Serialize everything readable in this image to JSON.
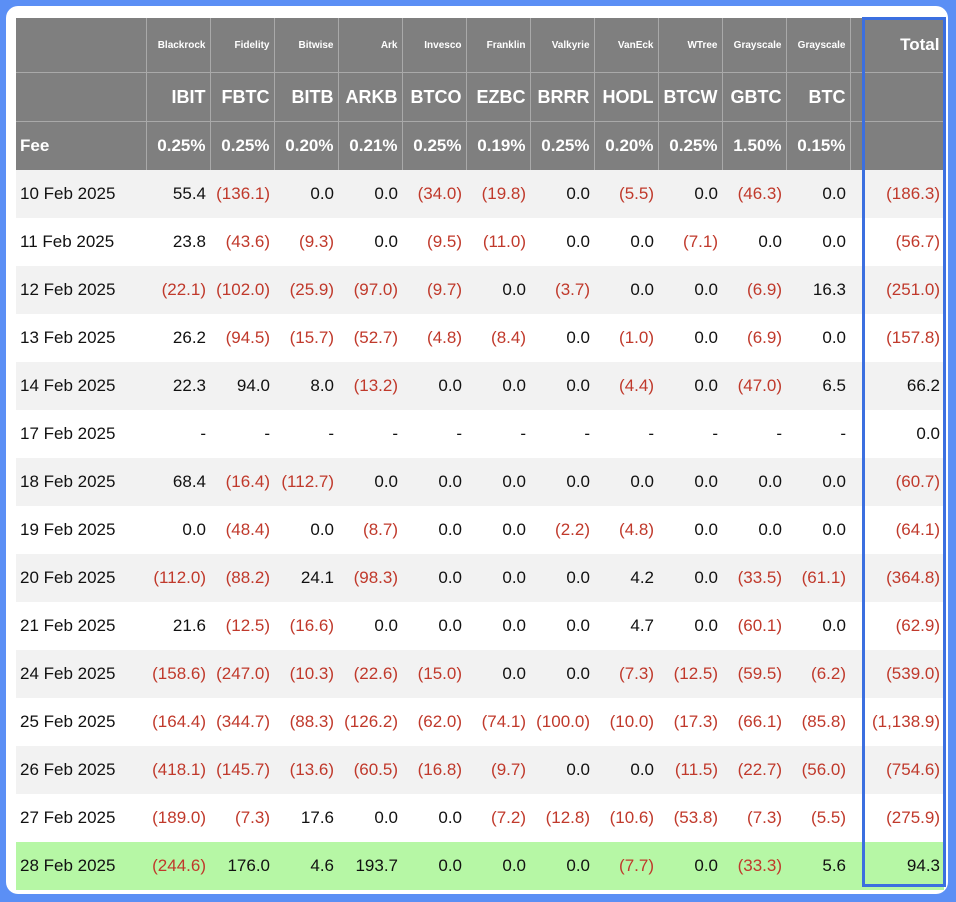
{
  "header": {
    "issuers": [
      "Blackrock",
      "Fidelity",
      "Bitwise",
      "Ark",
      "Invesco",
      "Franklin",
      "Valkyrie",
      "VanEck",
      "WTree",
      "Grayscale",
      "Grayscale"
    ],
    "total_label": "Total",
    "tickers": [
      "IBIT",
      "FBTC",
      "BITB",
      "ARKB",
      "BTCO",
      "EZBC",
      "BRRR",
      "HODL",
      "BTCW",
      "GBTC",
      "BTC"
    ],
    "fee_label": "Fee",
    "fees": [
      "0.25%",
      "0.25%",
      "0.20%",
      "0.21%",
      "0.25%",
      "0.19%",
      "0.25%",
      "0.20%",
      "0.25%",
      "1.50%",
      "0.15%"
    ]
  },
  "rows": [
    {
      "date": "10 Feb 2025",
      "values": [
        "55.4",
        "(136.1)",
        "0.0",
        "0.0",
        "(34.0)",
        "(19.8)",
        "0.0",
        "(5.5)",
        "0.0",
        "(46.3)",
        "0.0"
      ],
      "total": "(186.3)"
    },
    {
      "date": "11 Feb 2025",
      "values": [
        "23.8",
        "(43.6)",
        "(9.3)",
        "0.0",
        "(9.5)",
        "(11.0)",
        "0.0",
        "0.0",
        "(7.1)",
        "0.0",
        "0.0"
      ],
      "total": "(56.7)"
    },
    {
      "date": "12 Feb 2025",
      "values": [
        "(22.1)",
        "(102.0)",
        "(25.9)",
        "(97.0)",
        "(9.7)",
        "0.0",
        "(3.7)",
        "0.0",
        "0.0",
        "(6.9)",
        "16.3"
      ],
      "total": "(251.0)"
    },
    {
      "date": "13 Feb 2025",
      "values": [
        "26.2",
        "(94.5)",
        "(15.7)",
        "(52.7)",
        "(4.8)",
        "(8.4)",
        "0.0",
        "(1.0)",
        "0.0",
        "(6.9)",
        "0.0"
      ],
      "total": "(157.8)"
    },
    {
      "date": "14 Feb 2025",
      "values": [
        "22.3",
        "94.0",
        "8.0",
        "(13.2)",
        "0.0",
        "0.0",
        "0.0",
        "(4.4)",
        "0.0",
        "(47.0)",
        "6.5"
      ],
      "total": "66.2"
    },
    {
      "date": "17 Feb 2025",
      "values": [
        "-",
        "-",
        "-",
        "-",
        "-",
        "-",
        "-",
        "-",
        "-",
        "-",
        "-"
      ],
      "total": "0.0"
    },
    {
      "date": "18 Feb 2025",
      "values": [
        "68.4",
        "(16.4)",
        "(112.7)",
        "0.0",
        "0.0",
        "0.0",
        "0.0",
        "0.0",
        "0.0",
        "0.0",
        "0.0"
      ],
      "total": "(60.7)"
    },
    {
      "date": "19 Feb 2025",
      "values": [
        "0.0",
        "(48.4)",
        "0.0",
        "(8.7)",
        "0.0",
        "0.0",
        "(2.2)",
        "(4.8)",
        "0.0",
        "0.0",
        "0.0"
      ],
      "total": "(64.1)"
    },
    {
      "date": "20 Feb 2025",
      "values": [
        "(112.0)",
        "(88.2)",
        "24.1",
        "(98.3)",
        "0.0",
        "0.0",
        "0.0",
        "4.2",
        "0.0",
        "(33.5)",
        "(61.1)"
      ],
      "total": "(364.8)"
    },
    {
      "date": "21 Feb 2025",
      "values": [
        "21.6",
        "(12.5)",
        "(16.6)",
        "0.0",
        "0.0",
        "0.0",
        "0.0",
        "4.7",
        "0.0",
        "(60.1)",
        "0.0"
      ],
      "total": "(62.9)"
    },
    {
      "date": "24 Feb 2025",
      "values": [
        "(158.6)",
        "(247.0)",
        "(10.3)",
        "(22.6)",
        "(15.0)",
        "0.0",
        "0.0",
        "(7.3)",
        "(12.5)",
        "(59.5)",
        "(6.2)"
      ],
      "total": "(539.0)"
    },
    {
      "date": "25 Feb 2025",
      "values": [
        "(164.4)",
        "(344.7)",
        "(88.3)",
        "(126.2)",
        "(62.0)",
        "(74.1)",
        "(100.0)",
        "(10.0)",
        "(17.3)",
        "(66.1)",
        "(85.8)"
      ],
      "total": "(1,138.9)"
    },
    {
      "date": "26 Feb 2025",
      "values": [
        "(418.1)",
        "(145.7)",
        "(13.6)",
        "(60.5)",
        "(16.8)",
        "(9.7)",
        "0.0",
        "0.0",
        "(11.5)",
        "(22.7)",
        "(56.0)"
      ],
      "total": "(754.6)"
    },
    {
      "date": "27 Feb 2025",
      "values": [
        "(189.0)",
        "(7.3)",
        "17.6",
        "0.0",
        "0.0",
        "(7.2)",
        "(12.8)",
        "(10.6)",
        "(53.8)",
        "(7.3)",
        "(5.5)"
      ],
      "total": "(275.9)"
    },
    {
      "date": "28 Feb 2025",
      "values": [
        "(244.6)",
        "176.0",
        "4.6",
        "193.7",
        "0.0",
        "0.0",
        "0.0",
        "(7.7)",
        "0.0",
        "(33.3)",
        "5.6"
      ],
      "total": "94.3",
      "highlight": true
    }
  ],
  "colors": {
    "negative": "#c0392b",
    "header_bg": "#7f7f7f",
    "highlight_row": "#b6f7a5",
    "total_outline": "#3b6fe0"
  }
}
